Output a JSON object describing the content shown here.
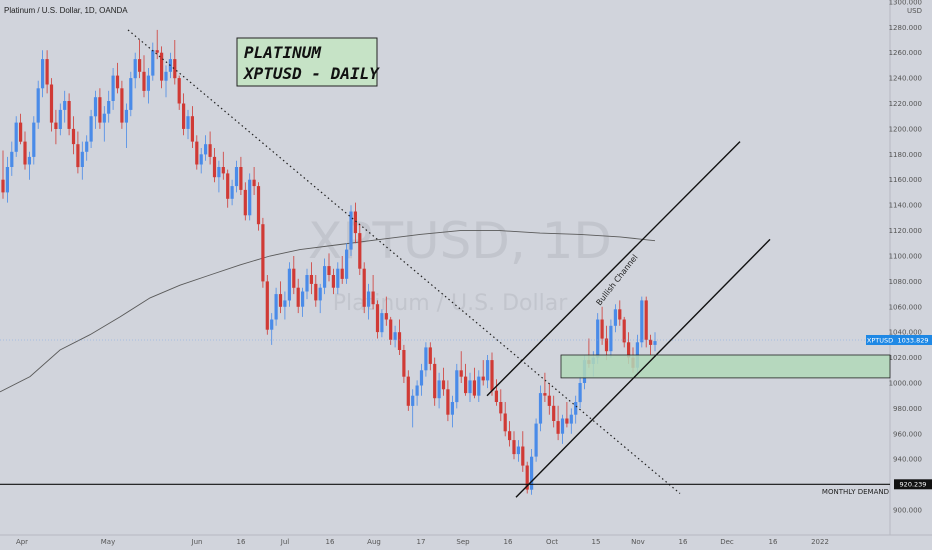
{
  "header": {
    "title": "Platinum / U.S. Dollar, 1D, OANDA"
  },
  "watermark": {
    "symbol": "XPTUSD, 1D",
    "name": "Platinum / U.S. Dollar"
  },
  "annotation_box": {
    "line1": "PLATINUM",
    "line2": "XPTUSD - DAILY"
  },
  "channel_label": "Bullish Channel",
  "demand_label": "MONTHLY DEMAND",
  "colors": {
    "up": "#4a8be8",
    "down": "#d03a35",
    "zone_fill": "#b2d8b8",
    "zone_stroke": "#222222",
    "box_bg": "#c6e3c6",
    "price_tag": "#1e88e5"
  },
  "chart_data": {
    "type": "candlestick",
    "symbol": "XPTUSD",
    "timeframe": "1D",
    "currency": "USD",
    "ylim": [
      890,
      1300
    ],
    "y_ticks": [
      1300,
      1280,
      1260,
      1240,
      1220,
      1200,
      1180,
      1160,
      1140,
      1120,
      1100,
      1080,
      1060,
      1040,
      1020,
      1000,
      980,
      960,
      940,
      900
    ],
    "x_ticks": [
      "Apr",
      "May",
      "Jun",
      "16",
      "Jul",
      "16",
      "Aug",
      "17",
      "Sep",
      "16",
      "Oct",
      "15",
      "Nov",
      "16",
      "Dec",
      "16",
      "2022"
    ],
    "last_price": "1033.829",
    "demand_level": "920.239",
    "ma_200": [
      [
        0,
        993
      ],
      [
        30,
        1005
      ],
      [
        60,
        1026
      ],
      [
        90,
        1038
      ],
      [
        120,
        1052
      ],
      [
        150,
        1067
      ],
      [
        180,
        1077
      ],
      [
        210,
        1085
      ],
      [
        240,
        1093
      ],
      [
        270,
        1100
      ],
      [
        300,
        1105
      ],
      [
        340,
        1109
      ],
      [
        380,
        1113
      ],
      [
        420,
        1117
      ],
      [
        460,
        1120
      ],
      [
        500,
        1120
      ],
      [
        540,
        1118
      ],
      [
        580,
        1117
      ],
      [
        620,
        1115
      ],
      [
        655,
        1112
      ]
    ],
    "demand_zone": [
      1004,
      1022
    ],
    "channel_upper": [
      [
        487,
        990
      ],
      [
        740,
        1190
      ]
    ],
    "channel_lower": [
      [
        516,
        910
      ],
      [
        770,
        1113
      ]
    ],
    "downtrend_line": [
      [
        128,
        1278
      ],
      [
        680,
        913
      ]
    ],
    "candles": [
      [
        1160,
        1183,
        1145,
        1150
      ],
      [
        1150,
        1178,
        1142,
        1170
      ],
      [
        1170,
        1190,
        1163,
        1182
      ],
      [
        1182,
        1210,
        1178,
        1205
      ],
      [
        1205,
        1212,
        1188,
        1190
      ],
      [
        1190,
        1198,
        1168,
        1172
      ],
      [
        1172,
        1182,
        1160,
        1178
      ],
      [
        1178,
        1210,
        1172,
        1205
      ],
      [
        1205,
        1238,
        1200,
        1232
      ],
      [
        1232,
        1262,
        1225,
        1255
      ],
      [
        1255,
        1262,
        1228,
        1235
      ],
      [
        1235,
        1240,
        1198,
        1205
      ],
      [
        1205,
        1215,
        1188,
        1200
      ],
      [
        1200,
        1220,
        1195,
        1215
      ],
      [
        1215,
        1230,
        1205,
        1222
      ],
      [
        1222,
        1228,
        1195,
        1200
      ],
      [
        1200,
        1210,
        1180,
        1188
      ],
      [
        1188,
        1198,
        1165,
        1170
      ],
      [
        1170,
        1190,
        1160,
        1182
      ],
      [
        1182,
        1195,
        1175,
        1190
      ],
      [
        1190,
        1215,
        1185,
        1210
      ],
      [
        1210,
        1230,
        1200,
        1225
      ],
      [
        1225,
        1232,
        1200,
        1205
      ],
      [
        1205,
        1218,
        1190,
        1212
      ],
      [
        1212,
        1230,
        1205,
        1222
      ],
      [
        1222,
        1248,
        1215,
        1242
      ],
      [
        1242,
        1252,
        1228,
        1232
      ],
      [
        1232,
        1238,
        1200,
        1205
      ],
      [
        1205,
        1220,
        1185,
        1215
      ],
      [
        1215,
        1245,
        1210,
        1240
      ],
      [
        1240,
        1260,
        1232,
        1255
      ],
      [
        1255,
        1270,
        1240,
        1245
      ],
      [
        1245,
        1258,
        1225,
        1230
      ],
      [
        1230,
        1248,
        1220,
        1242
      ],
      [
        1242,
        1268,
        1238,
        1262
      ],
      [
        1262,
        1278,
        1255,
        1260
      ],
      [
        1260,
        1265,
        1232,
        1238
      ],
      [
        1238,
        1250,
        1225,
        1245
      ],
      [
        1245,
        1260,
        1240,
        1255
      ],
      [
        1255,
        1270,
        1235,
        1240
      ],
      [
        1240,
        1242,
        1215,
        1220
      ],
      [
        1220,
        1228,
        1195,
        1200
      ],
      [
        1200,
        1215,
        1192,
        1210
      ],
      [
        1210,
        1218,
        1185,
        1190
      ],
      [
        1190,
        1195,
        1168,
        1172
      ],
      [
        1172,
        1185,
        1165,
        1180
      ],
      [
        1180,
        1195,
        1175,
        1188
      ],
      [
        1188,
        1198,
        1172,
        1178
      ],
      [
        1178,
        1185,
        1158,
        1162
      ],
      [
        1162,
        1175,
        1150,
        1170
      ],
      [
        1170,
        1182,
        1160,
        1165
      ],
      [
        1165,
        1168,
        1138,
        1145
      ],
      [
        1145,
        1160,
        1140,
        1155
      ],
      [
        1155,
        1175,
        1150,
        1170
      ],
      [
        1170,
        1178,
        1148,
        1152
      ],
      [
        1152,
        1158,
        1128,
        1132
      ],
      [
        1132,
        1165,
        1128,
        1160
      ],
      [
        1160,
        1170,
        1148,
        1155
      ],
      [
        1155,
        1158,
        1120,
        1125
      ],
      [
        1125,
        1130,
        1075,
        1080
      ],
      [
        1080,
        1085,
        1038,
        1042
      ],
      [
        1042,
        1055,
        1030,
        1050
      ],
      [
        1050,
        1075,
        1045,
        1070
      ],
      [
        1070,
        1080,
        1055,
        1060
      ],
      [
        1060,
        1072,
        1050,
        1065
      ],
      [
        1065,
        1095,
        1060,
        1090
      ],
      [
        1090,
        1100,
        1070,
        1075
      ],
      [
        1075,
        1082,
        1055,
        1060
      ],
      [
        1060,
        1075,
        1052,
        1072
      ],
      [
        1072,
        1090,
        1066,
        1085
      ],
      [
        1085,
        1095,
        1070,
        1078
      ],
      [
        1078,
        1085,
        1060,
        1065
      ],
      [
        1065,
        1078,
        1055,
        1075
      ],
      [
        1075,
        1098,
        1070,
        1092
      ],
      [
        1092,
        1102,
        1080,
        1085
      ],
      [
        1085,
        1090,
        1070,
        1075
      ],
      [
        1075,
        1095,
        1070,
        1090
      ],
      [
        1090,
        1100,
        1078,
        1082
      ],
      [
        1082,
        1110,
        1078,
        1105
      ],
      [
        1105,
        1140,
        1100,
        1135
      ],
      [
        1135,
        1142,
        1110,
        1118
      ],
      [
        1118,
        1125,
        1085,
        1090
      ],
      [
        1090,
        1095,
        1055,
        1060
      ],
      [
        1060,
        1078,
        1050,
        1072
      ],
      [
        1072,
        1085,
        1058,
        1062
      ],
      [
        1062,
        1065,
        1035,
        1040
      ],
      [
        1040,
        1058,
        1036,
        1055
      ],
      [
        1055,
        1068,
        1045,
        1050
      ],
      [
        1050,
        1052,
        1030,
        1034
      ],
      [
        1034,
        1045,
        1028,
        1040
      ],
      [
        1040,
        1050,
        1022,
        1026
      ],
      [
        1026,
        1030,
        1000,
        1005
      ],
      [
        1005,
        1010,
        978,
        982
      ],
      [
        982,
        995,
        965,
        990
      ],
      [
        990,
        1002,
        982,
        998
      ],
      [
        998,
        1015,
        990,
        1010
      ],
      [
        1010,
        1032,
        1005,
        1028
      ],
      [
        1028,
        1032,
        1010,
        1015
      ],
      [
        1015,
        1020,
        982,
        988
      ],
      [
        988,
        1008,
        980,
        1002
      ],
      [
        1002,
        1012,
        990,
        995
      ],
      [
        995,
        1002,
        970,
        975
      ],
      [
        975,
        990,
        965,
        985
      ],
      [
        985,
        1015,
        980,
        1010
      ],
      [
        1010,
        1025,
        1000,
        1005
      ],
      [
        1005,
        1015,
        990,
        992
      ],
      [
        992,
        1008,
        985,
        1002
      ],
      [
        1002,
        1012,
        988,
        990
      ],
      [
        990,
        1010,
        985,
        1005
      ],
      [
        1005,
        1018,
        998,
        1002
      ],
      [
        1002,
        1022,
        996,
        1018
      ],
      [
        1018,
        1024,
        990,
        994
      ],
      [
        994,
        1003,
        982,
        985
      ],
      [
        985,
        995,
        970,
        976
      ],
      [
        976,
        985,
        958,
        962
      ],
      [
        962,
        970,
        950,
        955
      ],
      [
        955,
        962,
        940,
        944
      ],
      [
        944,
        955,
        938,
        950
      ],
      [
        950,
        962,
        930,
        935
      ],
      [
        935,
        938,
        913,
        916
      ],
      [
        916,
        948,
        912,
        942
      ],
      [
        942,
        972,
        938,
        968
      ],
      [
        968,
        998,
        962,
        992
      ],
      [
        992,
        1008,
        985,
        990
      ],
      [
        990,
        1000,
        975,
        982
      ],
      [
        982,
        990,
        965,
        970
      ],
      [
        970,
        982,
        955,
        960
      ],
      [
        960,
        975,
        952,
        972
      ],
      [
        972,
        985,
        965,
        968
      ],
      [
        968,
        980,
        960,
        975
      ],
      [
        975,
        990,
        968,
        985
      ],
      [
        985,
        1005,
        980,
        1000
      ],
      [
        1000,
        1022,
        995,
        1018
      ],
      [
        1018,
        1035,
        1012,
        1015
      ],
      [
        1015,
        1025,
        1005,
        1020
      ],
      [
        1020,
        1055,
        1015,
        1050
      ],
      [
        1050,
        1060,
        1030,
        1035
      ],
      [
        1035,
        1045,
        1018,
        1025
      ],
      [
        1025,
        1050,
        1020,
        1045
      ],
      [
        1045,
        1062,
        1040,
        1058
      ],
      [
        1058,
        1065,
        1045,
        1050
      ],
      [
        1050,
        1052,
        1028,
        1032
      ],
      [
        1032,
        1040,
        1015,
        1020
      ],
      [
        1020,
        1028,
        1008,
        1012
      ],
      [
        1012,
        1038,
        1008,
        1032
      ],
      [
        1032,
        1068,
        1028,
        1065
      ],
      [
        1065,
        1068,
        1028,
        1034
      ],
      [
        1034,
        1038,
        1022,
        1030
      ],
      [
        1030,
        1040,
        1025,
        1033
      ]
    ]
  }
}
